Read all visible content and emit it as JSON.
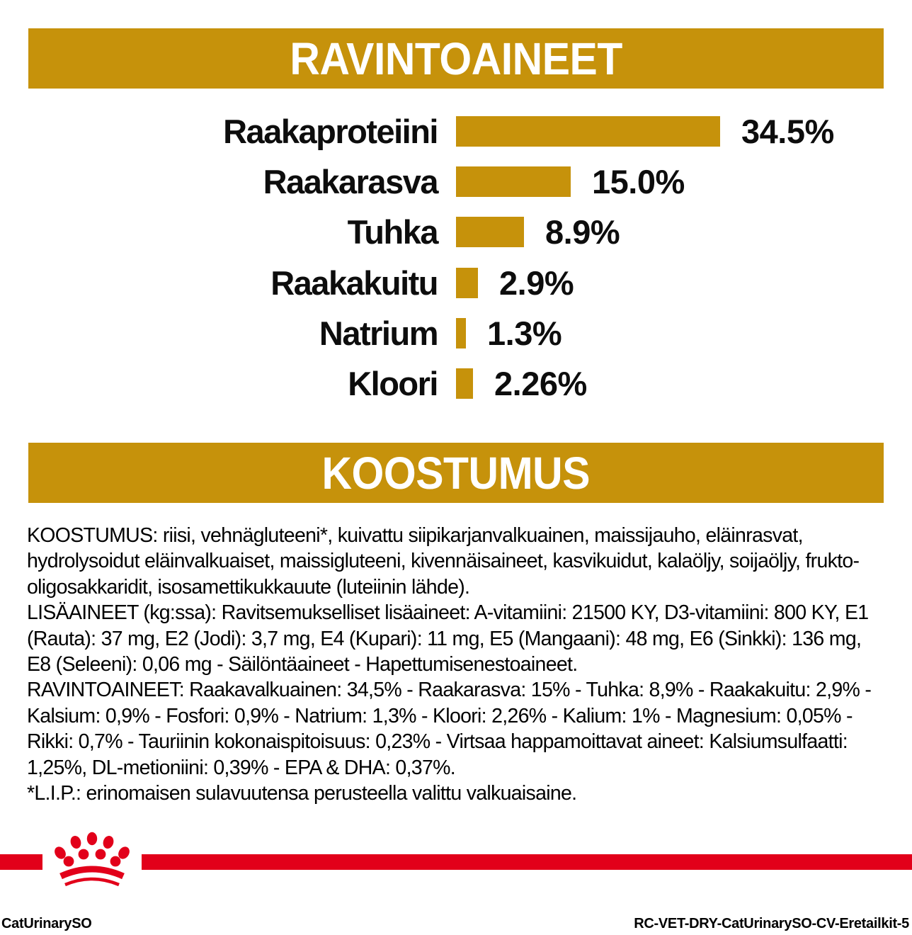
{
  "page": {
    "colors": {
      "gold": "#C6920B",
      "red": "#E2001A",
      "text": "#000000",
      "background": "#FFFFFF"
    }
  },
  "sections": {
    "nutrients": {
      "title": "RAVINTOAINEET"
    },
    "composition": {
      "title": "KOOSTUMUS"
    }
  },
  "chart_data": {
    "type": "bar",
    "orientation": "horizontal",
    "title": "RAVINTOAINEET",
    "xlabel": "",
    "ylabel": "",
    "xlim": [
      0,
      40
    ],
    "grid": false,
    "legend": false,
    "bar_color": "#C6920B",
    "categories": [
      "Raakaproteiini",
      "Raakarasva",
      "Tuhka",
      "Raakakuitu",
      "Natrium",
      "Kloori"
    ],
    "values": [
      34.5,
      15.0,
      8.9,
      2.9,
      1.3,
      2.26
    ],
    "value_labels": [
      "34.5%",
      "15.0%",
      "8.9%",
      "2.9%",
      "1.3%",
      "2.26%"
    ]
  },
  "composition": {
    "paragraphs": [
      "KOOSTUMUS: riisi, vehnägluteeni*, kuivattu siipikarjanvalkuainen, maissijauho, eläinrasvat, hydrolysoidut eläinvalkuaiset, maissigluteeni, kivennäisaineet, kasvikuidut, kalaöljy, soijaöljy, frukto-oligosakkaridit, isosamettikukkauute (luteiinin lähde).",
      "LISÄAINEET (kg:ssa): Ravitsemukselliset lisäaineet: A-vitamiini: 21500 KY, D3-vitamiini: 800 KY, E1 (Rauta): 37 mg, E2 (Jodi): 3,7 mg, E4 (Kupari): 11 mg, E5 (Mangaani): 48 mg, E6 (Sinkki): 136 mg, E8 (Seleeni): 0,06 mg - Säilöntäaineet - Hapettumisenestoaineet.",
      "RAVINTOAINEET: Raakavalkuainen: 34,5% - Raakarasva: 15% - Tuhka: 8,9% - Raakakuitu: 2,9% - Kalsium: 0,9% - Fosfori: 0,9% - Natrium: 1,3% - Kloori: 2,26% - Kalium: 1% - Magnesium: 0,05% - Rikki: 0,7% - Tauriinin kokonaispitoisuus: 0,23% - Virtsaa happamoittavat aineet: Kalsiumsulfaatti: 1,25%, DL-metioniini: 0,39% - EPA & DHA: 0,37%.",
      "*L.I.P.: erinomaisen sulavuutensa perusteella valittu valkuaisaine."
    ]
  },
  "footer": {
    "left_code": "CatUrinarySO",
    "right_code": "RC-VET-DRY-CatUrinarySO-CV-Eretailkit-5",
    "logo": "royal-canin-crown"
  }
}
